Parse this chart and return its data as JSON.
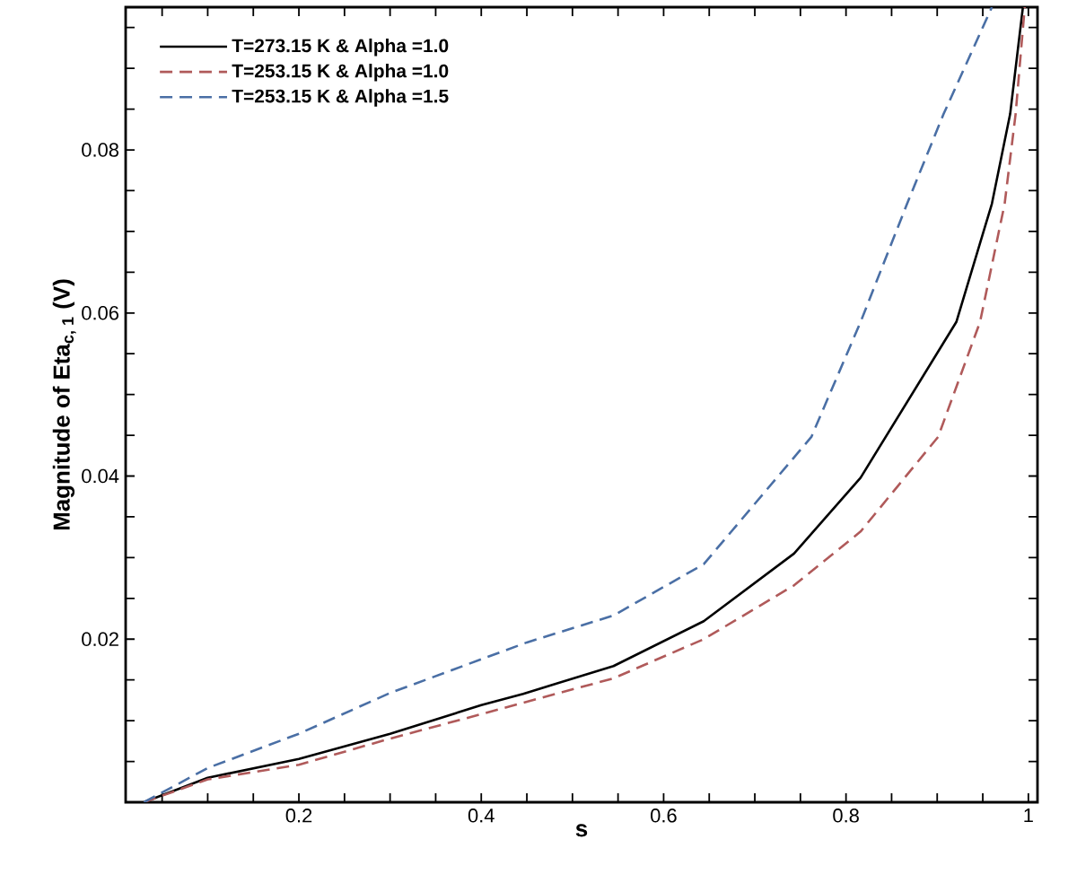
{
  "chart_data": {
    "type": "line",
    "xlabel": "s",
    "ylabel": "Magnitude of Eta$_{c, 1}$ (V)",
    "xlim": [
      0.01,
      1.01
    ],
    "ylim": [
      0,
      0.0975
    ],
    "xticks": [
      {
        "value": 0.05,
        "label": null
      },
      {
        "value": 0.1,
        "label": null
      },
      {
        "value": 0.15,
        "label": null
      },
      0.2,
      {
        "value": 0.25,
        "label": null
      },
      {
        "value": 0.3,
        "label": null
      },
      {
        "value": 0.35,
        "label": null
      },
      0.4,
      {
        "value": 0.45,
        "label": null
      },
      {
        "value": 0.5,
        "label": null
      },
      {
        "value": 0.55,
        "label": null
      },
      0.6,
      {
        "value": 0.65,
        "label": null
      },
      {
        "value": 0.7,
        "label": null
      },
      {
        "value": 0.75,
        "label": null
      },
      0.8,
      {
        "value": 0.85,
        "label": null
      },
      {
        "value": 0.9,
        "label": null
      },
      {
        "value": 0.95,
        "label": null
      },
      1
    ],
    "yticks": [
      {
        "value": 0.005,
        "label": null
      },
      {
        "value": 0.01,
        "label": null
      },
      {
        "value": 0.015,
        "label": null
      },
      0.02,
      {
        "value": 0.025,
        "label": null
      },
      {
        "value": 0.03,
        "label": null
      },
      {
        "value": 0.035,
        "label": null
      },
      0.04,
      {
        "value": 0.045,
        "label": null
      },
      {
        "value": 0.05,
        "label": null
      },
      {
        "value": 0.055,
        "label": null
      },
      0.06,
      {
        "value": 0.065,
        "label": null
      },
      {
        "value": 0.07,
        "label": null
      },
      {
        "value": 0.075,
        "label": null
      },
      0.08,
      {
        "value": 0.085,
        "label": null
      },
      {
        "value": 0.09,
        "label": null
      },
      {
        "value": 0.095,
        "label": null
      }
    ],
    "legend": "top left",
    "series": [
      {
        "name": "T=273.15 K & Alpha =1.0",
        "color": "#000000",
        "line_style": "solid",
        "x": [
          0.03,
          0.1,
          0.2,
          0.3,
          0.4,
          0.446,
          0.545,
          0.644,
          0.743,
          0.816,
          0.921,
          0.96,
          0.98,
          0.994
        ],
        "values": [
          0,
          0.003,
          0.0053,
          0.0084,
          0.0119,
          0.0133,
          0.0167,
          0.0222,
          0.0305,
          0.0398,
          0.0589,
          0.0734,
          0.0844,
          0.0975
        ]
      },
      {
        "name": "T=253.15 K & Alpha =1.0",
        "color": "#b05a5a",
        "line_style": "dashed",
        "x": [
          0.03,
          0.1,
          0.2,
          0.3,
          0.4,
          0.446,
          0.545,
          0.644,
          0.743,
          0.816,
          0.901,
          0.947,
          0.974,
          0.986,
          0.996
        ],
        "values": [
          0,
          0.0028,
          0.0046,
          0.0078,
          0.0108,
          0.0122,
          0.0152,
          0.02,
          0.0266,
          0.0332,
          0.0448,
          0.0589,
          0.0734,
          0.0844,
          0.0975
        ]
      },
      {
        "name": "T=253.15 K & Alpha =1.5",
        "color": "#4a6fa5",
        "line_style": "dashed",
        "x": [
          0.03,
          0.1,
          0.2,
          0.3,
          0.45,
          0.545,
          0.644,
          0.762,
          0.816,
          0.867,
          0.907,
          0.96
        ],
        "values": [
          0,
          0.0042,
          0.0084,
          0.0134,
          0.0196,
          0.0229,
          0.0292,
          0.0448,
          0.0589,
          0.0734,
          0.0844,
          0.0975
        ]
      }
    ]
  }
}
